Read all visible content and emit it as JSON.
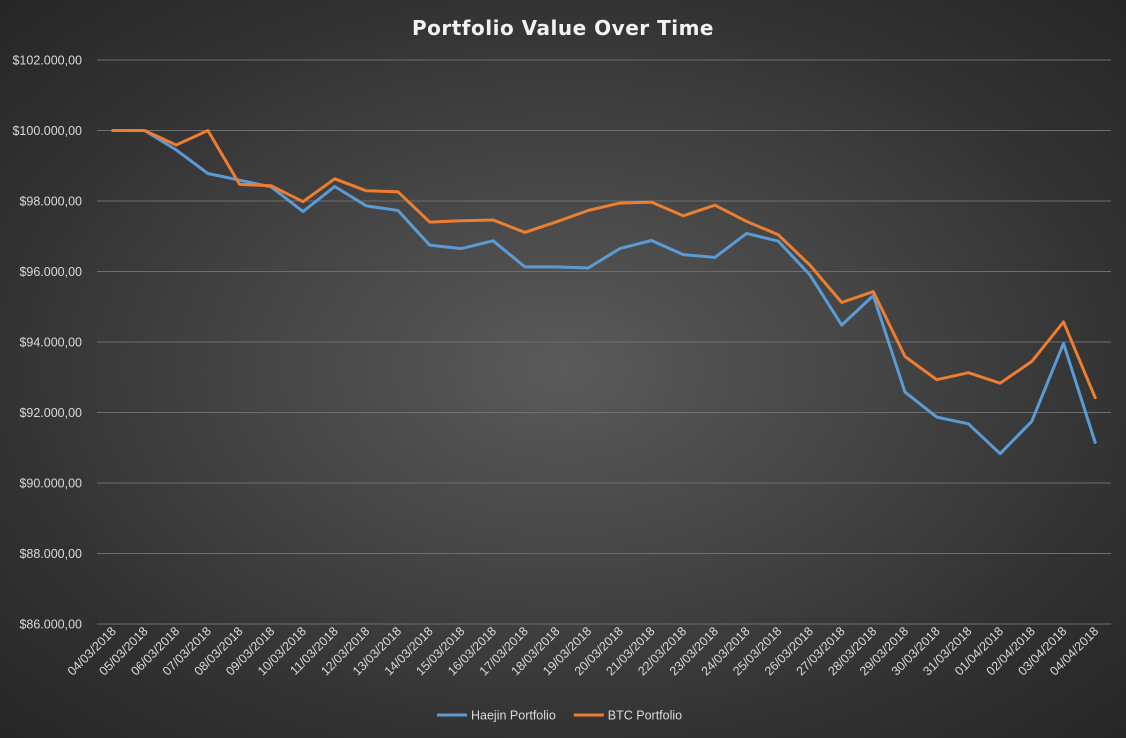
{
  "chart_data": {
    "type": "line",
    "title": "Portfolio Value Over Time",
    "xlabel": "",
    "ylabel": "",
    "ylim": [
      86000,
      102000
    ],
    "y_ticks": [
      86000,
      88000,
      90000,
      92000,
      94000,
      96000,
      98000,
      100000,
      102000
    ],
    "y_tick_labels": [
      "$86.000,00",
      "$88.000,00",
      "$90.000,00",
      "$92.000,00",
      "$94.000,00",
      "$96.000,00",
      "$98.000,00",
      "$100.000,00",
      "$102.000,00"
    ],
    "grid": true,
    "legend_position": "bottom",
    "categories": [
      "04/03/2018",
      "05/03/2018",
      "06/03/2018",
      "07/03/2018",
      "08/03/2018",
      "09/03/2018",
      "10/03/2018",
      "11/03/2018",
      "12/03/2018",
      "13/03/2018",
      "14/03/2018",
      "15/03/2018",
      "16/03/2018",
      "17/03/2018",
      "18/03/2018",
      "19/03/2018",
      "20/03/2018",
      "21/03/2018",
      "22/03/2018",
      "23/03/2018",
      "24/03/2018",
      "25/03/2018",
      "26/03/2018",
      "27/03/2018",
      "28/03/2018",
      "29/03/2018",
      "30/03/2018",
      "31/03/2018",
      "01/04/2018",
      "02/04/2018",
      "03/04/2018",
      "04/04/2018"
    ],
    "series": [
      {
        "name": "Haejin Portfolio",
        "color": "#5b9bd5",
        "values": [
          100000,
          100000,
          99450,
          98780,
          98590,
          98400,
          97700,
          98410,
          97860,
          97730,
          96750,
          96650,
          96870,
          96130,
          96130,
          96100,
          96650,
          96880,
          96480,
          96400,
          97080,
          96860,
          95900,
          94480,
          95320,
          92580,
          91870,
          91680,
          90830,
          91750,
          93960,
          91150
        ]
      },
      {
        "name": "BTC Portfolio",
        "color": "#ed7d31",
        "values": [
          100000,
          100000,
          99590,
          100000,
          98470,
          98430,
          97980,
          98630,
          98290,
          98260,
          97400,
          97440,
          97460,
          97110,
          97410,
          97730,
          97940,
          97970,
          97580,
          97880,
          97420,
          97040,
          96180,
          95120,
          95430,
          93590,
          92930,
          93130,
          92830,
          93450,
          94570,
          92420
        ]
      }
    ]
  }
}
